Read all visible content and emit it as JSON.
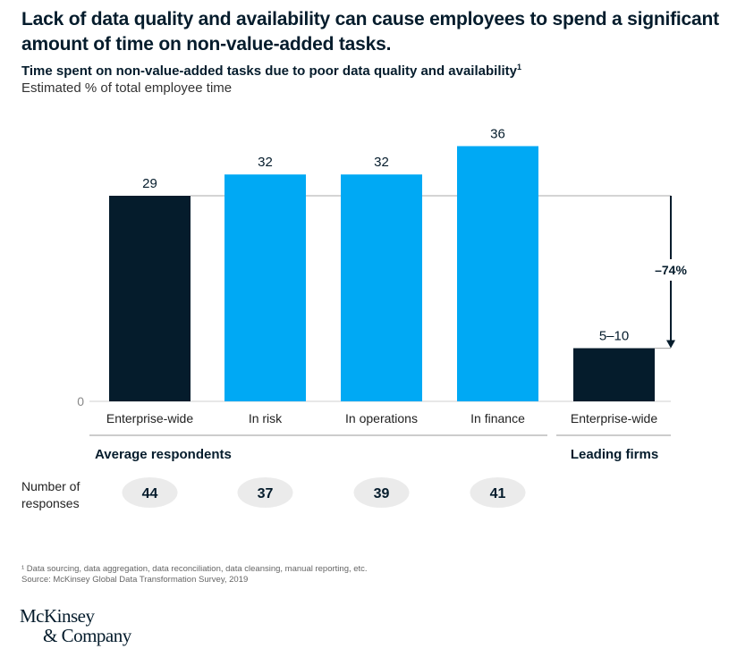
{
  "title": "Lack of data quality and availability can cause employees to spend a significant amount of time on non-value-added tasks.",
  "subtitle": "Time spent on non-value-added tasks due to poor data quality and availability",
  "subtitle_footnote": "1",
  "unit_label": "Estimated % of total employee time",
  "chart_data": {
    "type": "bar",
    "categories": [
      "Enterprise-wide",
      "In risk",
      "In operations",
      "In finance",
      "Enterprise-wide"
    ],
    "values": [
      29,
      32,
      32,
      36,
      7.5
    ],
    "data_labels": [
      "29",
      "32",
      "32",
      "36",
      "5–10"
    ],
    "colors": [
      "#051c2c",
      "#00a9f4",
      "#00a9f4",
      "#00a9f4",
      "#051c2c"
    ],
    "groups": [
      {
        "label": "Average respondents",
        "categories": [
          0,
          1,
          2,
          3
        ]
      },
      {
        "label": "Leading firms",
        "categories": [
          4
        ]
      }
    ],
    "y_tick": "0",
    "ylim": [
      0,
      38
    ],
    "annotation": "–74%",
    "responses_label": "Number of responses",
    "responses": [
      "44",
      "37",
      "39",
      "41"
    ]
  },
  "footnote": "¹ Data sourcing, data aggregation, data reconciliation, data cleansing, manual reporting, etc.",
  "source": "Source: McKinsey Global Data Transformation Survey, 2019",
  "logo": [
    "McKinsey",
    "& Company"
  ]
}
